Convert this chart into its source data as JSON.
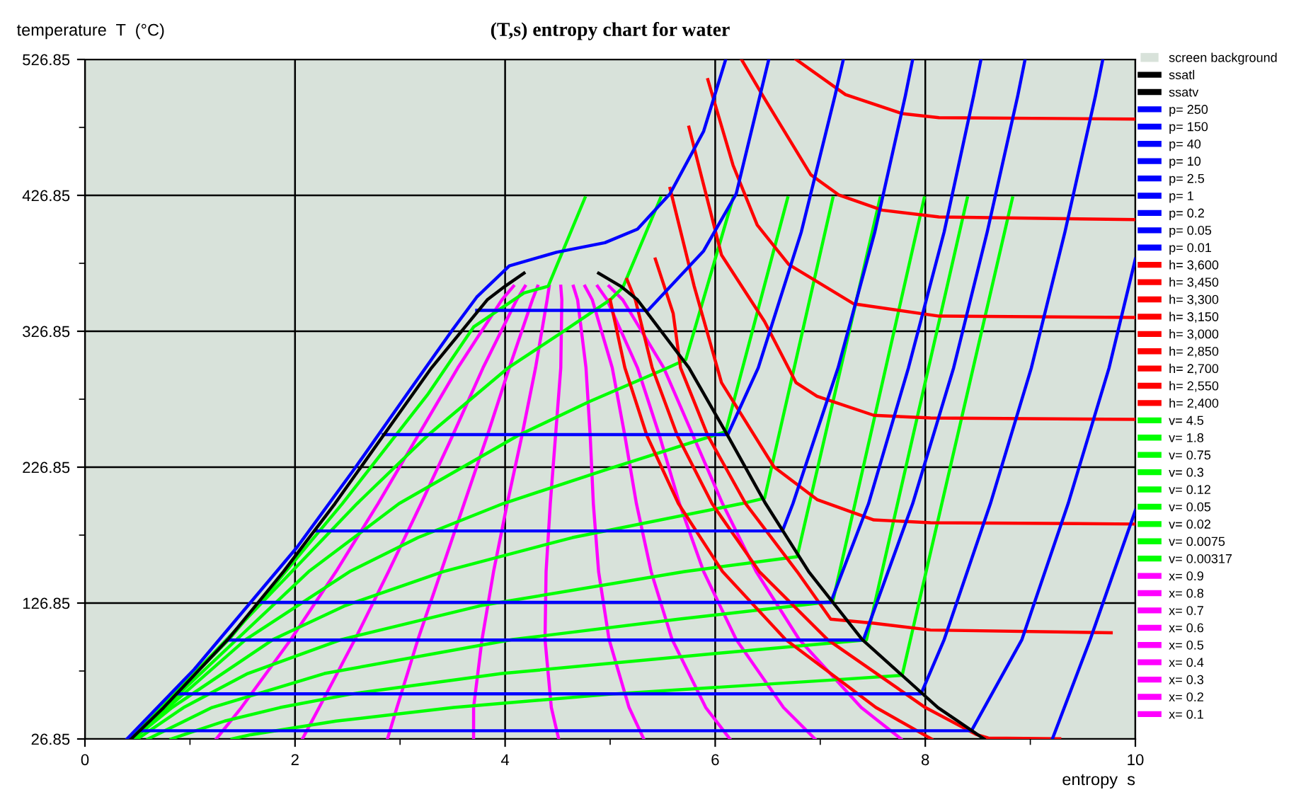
{
  "chart_data": {
    "type": "line",
    "title": "(T,s) entropy chart for water",
    "xlabel": "entropy  s",
    "ylabel": "temperature  T  (°C)",
    "xlim": [
      0,
      10
    ],
    "xticks": [
      0,
      {
        "value": 1,
        "label": null
      },
      2,
      {
        "value": 3,
        "label": null
      },
      4,
      {
        "value": 5,
        "label": null
      },
      6,
      {
        "value": 7,
        "label": null
      },
      8,
      {
        "value": 9,
        "label": null
      },
      10
    ],
    "ylim": [
      26.85,
      526.85
    ],
    "yticks": [
      26.85,
      {
        "value": 76.85,
        "label": null
      },
      126.85,
      {
        "value": 176.85,
        "label": null
      },
      226.85,
      {
        "value": 276.85,
        "label": null
      },
      326.85,
      {
        "value": 376.85,
        "label": null
      },
      426.85,
      {
        "value": 476.85,
        "label": null
      },
      526.85
    ],
    "grid": true,
    "legend": "right",
    "line_style": "solid",
    "bands": [
      {
        "axis": "x",
        "from": 0,
        "to": 10,
        "label": "screen background",
        "color": "#d8e2da"
      }
    ],
    "series": [
      {
        "name": "ssatl",
        "color": "#000000",
        "x": [
          0.44,
          0.75,
          1.36,
          1.89,
          2.38,
          2.84,
          3.3,
          3.83,
          4.0,
          4.18
        ],
        "values": [
          26.85,
          50,
          100,
          150,
          200,
          250,
          300,
          350,
          360,
          369.6
        ]
      },
      {
        "name": "ssatv",
        "color": "#000000",
        "x": [
          4.89,
          5.1,
          5.26,
          5.75,
          6.12,
          6.48,
          6.89,
          7.4,
          8.12,
          8.56
        ],
        "values": [
          369.6,
          360,
          350,
          300,
          250,
          200,
          150,
          100,
          50,
          26.85
        ]
      },
      {
        "name": "p= 250",
        "color": "#0000ff",
        "x": [
          0.4,
          1.04,
          2.02,
          2.56,
          3.06,
          3.5,
          3.73,
          4.04,
          4.49,
          4.95,
          5.26,
          5.57,
          5.89,
          6.1
        ],
        "values": [
          26.85,
          78,
          168,
          225,
          280,
          328,
          352,
          375,
          385,
          392,
          402,
          428,
          474,
          526.85
        ]
      },
      {
        "name": "p= 150",
        "color": "#0000ff",
        "x": [
          3.73,
          5.36,
          5.89,
          6.2,
          6.51
        ],
        "values": [
          342.2,
          342.2,
          386,
          428,
          526.85
        ]
      },
      {
        "name": "p= 40",
        "color": "#0000ff",
        "x": [
          2.84,
          6.12,
          6.41,
          6.82,
          7.14,
          7.22
        ],
        "values": [
          250.8,
          250.8,
          300,
          400,
          500,
          526.85
        ]
      },
      {
        "name": "p= 10",
        "color": "#0000ff",
        "x": [
          2.19,
          6.64,
          6.74,
          7.17,
          7.52,
          7.81,
          7.88
        ],
        "values": [
          179.9,
          179.9,
          200,
          300,
          400,
          500,
          526.85
        ]
      },
      {
        "name": "p= 2.5",
        "color": "#0000ff",
        "x": [
          1.66,
          7.1,
          7.46,
          7.84,
          8.18,
          8.46,
          8.53
        ],
        "values": [
          127.4,
          127.4,
          200,
          300,
          400,
          500,
          526.85
        ]
      },
      {
        "name": "p= 1",
        "color": "#0000ff",
        "x": [
          1.36,
          7.41,
          7.88,
          8.27,
          8.59,
          8.88,
          8.95
        ],
        "values": [
          99.6,
          99.6,
          200,
          300,
          400,
          500,
          526.85
        ]
      },
      {
        "name": "p= 0.2",
        "color": "#0000ff",
        "x": [
          0.88,
          7.96,
          8.18,
          8.62,
          9.01,
          9.33,
          9.62,
          9.69
        ],
        "values": [
          60.1,
          60.1,
          100,
          200,
          300,
          400,
          500,
          526.85
        ]
      },
      {
        "name": "p= 0.05",
        "color": "#0000ff",
        "x": [
          0.53,
          8.44,
          8.92,
          9.36,
          9.75,
          10.0
        ],
        "values": [
          32.9,
          32.9,
          100,
          200,
          300,
          380
        ]
      },
      {
        "name": "p= 0.01",
        "color": "#0000ff",
        "x": [
          9.21,
          9.57,
          10.0
        ],
        "values": [
          26.85,
          100,
          195
        ]
      },
      {
        "name": "h= 3,600",
        "color": "#ff0000"
      },
      {
        "name": "h= 3,450",
        "color": "#ff0000",
        "x": [
          6.77,
          7.24,
          7.78,
          8.13,
          10.0
        ],
        "values": [
          526.85,
          501,
          487,
          484,
          483
        ]
      },
      {
        "name": "h= 3,300",
        "color": "#ff0000",
        "x": [
          6.25,
          6.47,
          6.91,
          7.18,
          7.59,
          8.13,
          10.0
        ],
        "values": [
          526.85,
          498,
          442,
          427,
          416,
          411,
          409
        ]
      },
      {
        "name": "h= 3,150",
        "color": "#ff0000",
        "x": [
          5.93,
          6.17,
          6.4,
          6.7,
          7.32,
          8.13,
          10.0
        ],
        "values": [
          512,
          449,
          405,
          376,
          347,
          338,
          337
        ]
      },
      {
        "name": "h= 3,000",
        "color": "#ff0000",
        "x": [
          5.75,
          6.06,
          6.47,
          6.77,
          6.97,
          7.51,
          8.05,
          10.0
        ],
        "values": [
          477,
          383,
          334,
          289,
          279,
          265,
          263,
          262
        ]
      },
      {
        "name": "h= 2,850",
        "color": "#ff0000",
        "x": [
          5.57,
          5.8,
          6.06,
          6.56,
          6.97,
          7.51,
          8.05,
          10.0
        ],
        "values": [
          432,
          360,
          289,
          227,
          203,
          188,
          186,
          185
        ]
      },
      {
        "name": "h= 2,700",
        "color": "#ff0000",
        "x": [
          5.43,
          5.6,
          5.67,
          5.93,
          6.29,
          6.78,
          7.1,
          7.51,
          8.05,
          9.77
        ],
        "values": [
          380,
          340,
          300,
          250,
          200,
          150,
          115,
          112,
          107,
          105
        ]
      },
      {
        "name": "h= 2,550",
        "color": "#ff0000",
        "x": [
          5.16,
          5.24,
          5.4,
          5.64,
          5.97,
          6.42,
          7.07,
          8.0,
          8.49,
          8.6,
          9.28
        ],
        "values": [
          365,
          350,
          300,
          250,
          200,
          150,
          100,
          50,
          30,
          27.5,
          27
        ]
      },
      {
        "name": "h= 2,400",
        "color": "#ff0000",
        "x": [
          5.0,
          5.14,
          5.35,
          5.65,
          6.07,
          6.67,
          7.53,
          8.06
        ],
        "values": [
          350,
          300,
          250,
          200,
          150,
          100,
          50,
          26.85
        ]
      },
      {
        "name": "v= 4.5",
        "color": "#00ff00",
        "x": [
          1.4,
          1.58,
          2.39,
          3.51,
          5.03,
          7.07,
          7.78,
          8.83
        ],
        "values": [
          26.85,
          30,
          40,
          50,
          60,
          70,
          73.7,
          425
        ]
      },
      {
        "name": "v= 1.8",
        "color": "#00ff00",
        "x": [
          0.82,
          1.33,
          1.86,
          2.54,
          3.97,
          6.04,
          7.44,
          8.4
        ],
        "values": [
          26.85,
          40,
          50,
          60,
          75,
          90,
          99.8,
          425
        ]
      },
      {
        "name": "v= 0.75",
        "color": "#00ff00",
        "x": [
          0.6,
          1.21,
          2.28,
          4.07,
          5.65,
          7.12,
          7.99
        ],
        "values": [
          26.85,
          50,
          75,
          100,
          115,
          128,
          425
        ]
      },
      {
        "name": "v= 0.3",
        "color": "#00ff00",
        "x": [
          0.5,
          0.94,
          1.55,
          2.44,
          3.77,
          5.71,
          6.78,
          7.57
        ],
        "values": [
          26.85,
          50,
          75,
          100,
          125,
          150,
          161,
          425
        ]
      },
      {
        "name": "v= 0.12",
        "color": "#00ff00",
        "x": [
          0.46,
          0.83,
          1.79,
          2.48,
          3.41,
          4.64,
          6.25,
          6.47,
          7.12
        ],
        "values": [
          26.85,
          50,
          100,
          125,
          150,
          175,
          200,
          204,
          425
        ]
      },
      {
        "name": "v= 0.05",
        "color": "#00ff00",
        "x": [
          0.45,
          1.53,
          2.52,
          3.17,
          3.98,
          4.96,
          6.1,
          6.69
        ],
        "values": [
          26.85,
          100,
          150,
          175,
          200,
          225,
          253,
          425
        ]
      },
      {
        "name": "v= 0.02",
        "color": "#00ff00",
        "x": [
          0.44,
          2.13,
          2.99,
          4.12,
          4.8,
          5.55,
          5.72,
          6.17
        ],
        "values": [
          26.85,
          150,
          200,
          250,
          275,
          300,
          306,
          425
        ]
      },
      {
        "name": "v= 0.0075",
        "color": "#00ff00",
        "x": [
          0.44,
          2.59,
          3.26,
          4.03,
          4.52,
          5.0,
          5.12,
          5.48
        ],
        "values": [
          26.85,
          200,
          250,
          300,
          325,
          350,
          359,
          425
        ]
      },
      {
        "name": "v= 0.00317",
        "color": "#00ff00",
        "x": [
          0.44,
          1.37,
          2.45,
          3.26,
          3.7,
          4.18,
          4.41,
          4.76
        ],
        "values": [
          26.85,
          100,
          200,
          280,
          330,
          355,
          360,
          425
        ]
      },
      {
        "name": "x= 0.9",
        "color": "#ff00ff",
        "x": [
          7.77,
          7.39,
          6.8,
          6.39,
          6.07,
          5.79,
          5.51,
          5.12,
          4.99
        ],
        "values": [
          26.85,
          50,
          100,
          150,
          200,
          250,
          300,
          350,
          360
        ]
      },
      {
        "name": "x= 0.8",
        "color": "#ff00ff",
        "x": [
          6.95,
          6.65,
          6.2,
          5.89,
          5.66,
          5.47,
          5.26,
          4.97,
          4.88
        ],
        "values": [
          26.85,
          50,
          100,
          150,
          200,
          250,
          300,
          350,
          360
        ]
      },
      {
        "name": "x= 0.7",
        "color": "#ff00ff",
        "x": [
          6.14,
          5.91,
          5.59,
          5.39,
          5.25,
          5.14,
          5.02,
          4.83,
          4.76
        ],
        "values": [
          26.85,
          50,
          100,
          150,
          200,
          250,
          300,
          350,
          360
        ]
      },
      {
        "name": "x= 0.6",
        "color": "#ff00ff",
        "x": [
          5.32,
          5.18,
          4.99,
          4.89,
          4.84,
          4.81,
          4.77,
          4.69,
          4.65
        ],
        "values": [
          26.85,
          50,
          100,
          150,
          200,
          250,
          300,
          350,
          360
        ]
      },
      {
        "name": "x= 0.5",
        "color": "#ff00ff",
        "x": [
          4.51,
          4.44,
          4.38,
          4.39,
          4.43,
          4.48,
          4.53,
          4.54,
          4.53
        ],
        "values": [
          26.85,
          50,
          100,
          150,
          200,
          250,
          300,
          350,
          360
        ]
      },
      {
        "name": "x= 0.4",
        "color": "#ff00ff",
        "x": [
          3.7,
          3.7,
          3.78,
          3.89,
          4.02,
          4.16,
          4.29,
          4.4,
          4.42
        ],
        "values": [
          26.85,
          50,
          100,
          150,
          200,
          250,
          300,
          350,
          360
        ]
      },
      {
        "name": "x= 0.3",
        "color": "#ff00ff",
        "x": [
          2.88,
          2.97,
          3.17,
          3.39,
          3.61,
          3.83,
          4.04,
          4.26,
          4.31
        ],
        "values": [
          26.85,
          50,
          100,
          150,
          200,
          250,
          300,
          350,
          360
        ]
      },
      {
        "name": "x= 0.2",
        "color": "#ff00ff",
        "x": [
          2.07,
          2.23,
          2.57,
          2.89,
          3.2,
          3.5,
          3.79,
          4.11,
          4.19
        ],
        "values": [
          26.85,
          50,
          100,
          150,
          200,
          250,
          300,
          350,
          360
        ]
      },
      {
        "name": "x= 0.1",
        "color": "#ff00ff",
        "x": [
          1.25,
          1.49,
          1.96,
          2.39,
          2.79,
          3.17,
          3.55,
          3.97,
          4.08
        ],
        "values": [
          26.85,
          50,
          100,
          150,
          200,
          250,
          300,
          350,
          360
        ]
      }
    ]
  }
}
